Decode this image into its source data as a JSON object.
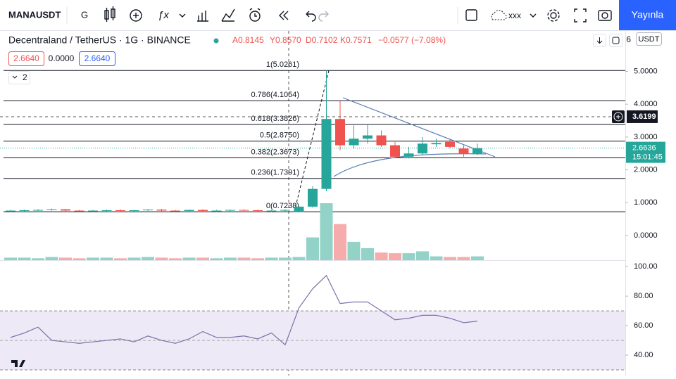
{
  "toolbar": {
    "symbol": "MANAUSDT",
    "interval": "G",
    "layout_name": "xxx",
    "publish": "Yayınla"
  },
  "legend": {
    "title": "Decentraland / TetherUS · 1G · BINANCE",
    "open": "A0.8145",
    "high": "Y0.8570",
    "low": "D0.7102",
    "close": "K0.7571",
    "change": "−0.0577 (−7.08%)",
    "inputs": [
      "2.6640",
      "0.0000",
      "2.6640"
    ],
    "collapsed_count": "2",
    "corner_digit": "6"
  },
  "chart_data": {
    "type": "candlestick",
    "unit": "USDT",
    "ylim": [
      -0.75,
      6.21
    ],
    "yticks": [
      {
        "value": 5,
        "label": "5.0000"
      },
      {
        "value": 4,
        "label": "4.0000"
      },
      {
        "value": 3,
        "label": "3.0000"
      },
      {
        "value": 2,
        "label": "2.0000"
      },
      {
        "value": 1,
        "label": "1.0000"
      },
      {
        "value": 0,
        "label": "0.0000"
      }
    ],
    "crosshair_price": {
      "value": 3.6199,
      "label": "3.6199"
    },
    "last_price": {
      "value": 2.6636,
      "label": "2.6636",
      "countdown": "15:01:45"
    },
    "up_color": "#26a69a",
    "down_color": "#ef5350",
    "fib_levels": [
      {
        "value": 5.0261,
        "label": "1(5.0261)"
      },
      {
        "value": 4.1054,
        "label": "0.786(4.1054)"
      },
      {
        "value": 3.3826,
        "label": "0.618(3.3826)"
      },
      {
        "value": 2.875,
        "label": "0.5(2.8750)"
      },
      {
        "value": 2.3673,
        "label": "0.382(2.3673)"
      },
      {
        "value": 1.7391,
        "label": "0.236(1.7391)"
      },
      {
        "value": 0.7238,
        "label": "0(0.7238)"
      }
    ],
    "candles": [
      {
        "o": 0.74,
        "h": 0.78,
        "l": 0.72,
        "c": 0.76
      },
      {
        "o": 0.76,
        "h": 0.79,
        "l": 0.74,
        "c": 0.77
      },
      {
        "o": 0.77,
        "h": 0.8,
        "l": 0.75,
        "c": 0.78
      },
      {
        "o": 0.78,
        "h": 0.82,
        "l": 0.76,
        "c": 0.8
      },
      {
        "o": 0.8,
        "h": 0.81,
        "l": 0.74,
        "c": 0.76
      },
      {
        "o": 0.76,
        "h": 0.78,
        "l": 0.73,
        "c": 0.75
      },
      {
        "o": 0.75,
        "h": 0.78,
        "l": 0.73,
        "c": 0.76
      },
      {
        "o": 0.76,
        "h": 0.79,
        "l": 0.74,
        "c": 0.77
      },
      {
        "o": 0.77,
        "h": 0.8,
        "l": 0.74,
        "c": 0.75
      },
      {
        "o": 0.75,
        "h": 0.79,
        "l": 0.73,
        "c": 0.77
      },
      {
        "o": 0.77,
        "h": 0.8,
        "l": 0.75,
        "c": 0.79
      },
      {
        "o": 0.79,
        "h": 0.81,
        "l": 0.74,
        "c": 0.76
      },
      {
        "o": 0.76,
        "h": 0.78,
        "l": 0.73,
        "c": 0.75
      },
      {
        "o": 0.75,
        "h": 0.79,
        "l": 0.73,
        "c": 0.78
      },
      {
        "o": 0.78,
        "h": 0.8,
        "l": 0.74,
        "c": 0.75
      },
      {
        "o": 0.75,
        "h": 0.78,
        "l": 0.72,
        "c": 0.76
      },
      {
        "o": 0.76,
        "h": 0.79,
        "l": 0.74,
        "c": 0.78
      },
      {
        "o": 0.78,
        "h": 0.8,
        "l": 0.75,
        "c": 0.77
      },
      {
        "o": 0.77,
        "h": 0.79,
        "l": 0.73,
        "c": 0.75
      },
      {
        "o": 0.75,
        "h": 0.78,
        "l": 0.72,
        "c": 0.76
      },
      {
        "o": 0.76,
        "h": 0.8,
        "l": 0.74,
        "c": 0.78
      },
      {
        "o": 0.72,
        "h": 0.9,
        "l": 0.7,
        "c": 0.88
      },
      {
        "o": 0.88,
        "h": 1.5,
        "l": 0.85,
        "c": 1.42
      },
      {
        "o": 1.42,
        "h": 5.03,
        "l": 1.35,
        "c": 3.55
      },
      {
        "o": 3.55,
        "h": 4.1,
        "l": 2.6,
        "c": 2.75
      },
      {
        "o": 2.75,
        "h": 3.35,
        "l": 2.65,
        "c": 2.95
      },
      {
        "o": 2.95,
        "h": 3.4,
        "l": 2.8,
        "c": 3.05
      },
      {
        "o": 3.05,
        "h": 3.2,
        "l": 2.7,
        "c": 2.75
      },
      {
        "o": 2.75,
        "h": 2.85,
        "l": 2.35,
        "c": 2.4
      },
      {
        "o": 2.4,
        "h": 2.7,
        "l": 2.35,
        "c": 2.5
      },
      {
        "o": 2.5,
        "h": 3.0,
        "l": 2.45,
        "c": 2.8
      },
      {
        "o": 2.78,
        "h": 2.95,
        "l": 2.7,
        "c": 2.82
      },
      {
        "o": 2.85,
        "h": 2.95,
        "l": 2.65,
        "c": 2.7
      },
      {
        "o": 2.65,
        "h": 2.75,
        "l": 2.4,
        "c": 2.48
      },
      {
        "o": 2.48,
        "h": 2.8,
        "l": 2.45,
        "c": 2.66
      }
    ],
    "volume_ylim": [
      0,
      100
    ],
    "volumes": [
      4,
      4,
      3,
      5,
      4,
      3,
      4,
      4,
      3,
      4,
      5,
      4,
      3,
      4,
      4,
      3,
      4,
      4,
      3,
      4,
      4,
      5,
      36,
      90,
      57,
      29,
      19,
      12,
      11,
      11,
      14,
      6,
      5,
      5,
      6
    ],
    "rsi": {
      "ylim": [
        26.2,
        103.9
      ],
      "yticks": [
        {
          "value": 100,
          "label": "100.00"
        },
        {
          "value": 80,
          "label": "80.00"
        },
        {
          "value": 60,
          "label": "60.00"
        },
        {
          "value": 40,
          "label": "40.00"
        }
      ],
      "band": [
        30,
        70
      ],
      "mid": 50,
      "color": "#7e6fa8",
      "values": [
        52,
        55,
        59,
        50,
        49,
        48,
        49,
        50,
        51,
        49,
        53,
        50,
        48,
        51,
        56,
        52,
        52,
        53,
        51,
        55,
        47,
        72,
        85,
        94,
        75,
        76,
        76,
        70,
        64,
        65,
        67,
        67,
        65,
        62,
        63
      ]
    }
  }
}
